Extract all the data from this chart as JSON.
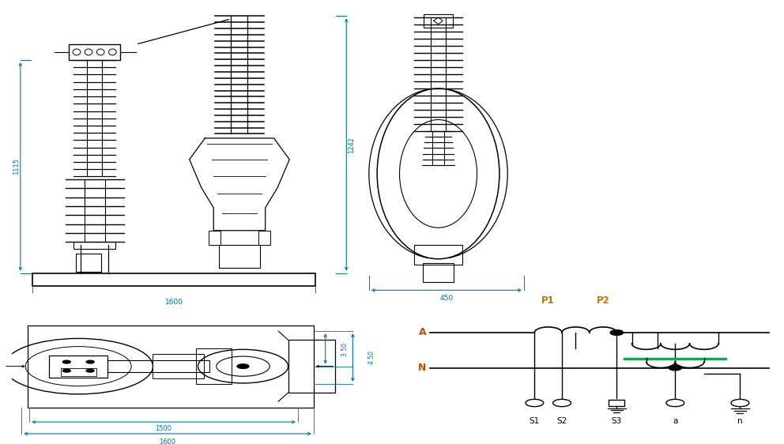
{
  "bg_color": "#ffffff",
  "lc": "#000000",
  "dc": "#0070C0",
  "oc": "#C07800",
  "gc": "#00B050",
  "figsize": [
    9.92,
    5.62
  ],
  "dpi": 100,
  "dims": {
    "front_1115": "1115",
    "front_1242": "1242",
    "front_1600": "1600",
    "side_450": "450",
    "top_350": "3 50",
    "top_450": "4 50",
    "top_1500": "1500",
    "top_1600": "1600"
  },
  "circuit_labels": {
    "P1": "P1",
    "P2": "P2",
    "A": "A",
    "N": "N",
    "S1": "S1",
    "S2": "S2",
    "S3": "S3",
    "a": "a",
    "n": "n"
  }
}
